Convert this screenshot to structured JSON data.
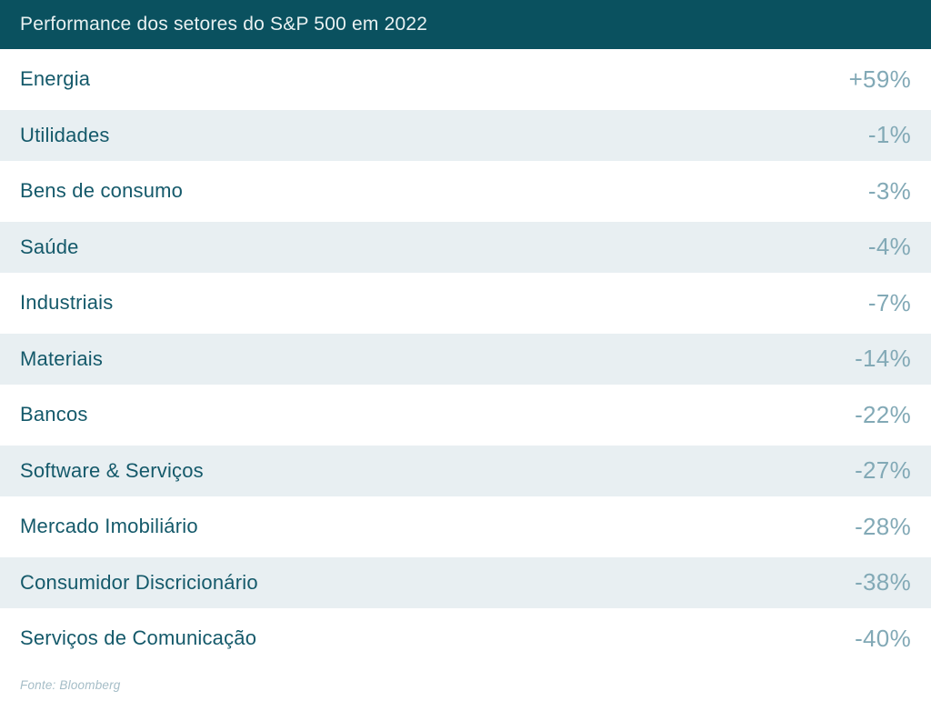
{
  "header": {
    "title": "Performance dos setores do S&P 500 em 2022"
  },
  "rows": [
    {
      "label": "Energia",
      "value": "+59%"
    },
    {
      "label": "Utilidades",
      "value": "-1%"
    },
    {
      "label": "Bens de consumo",
      "value": "-3%"
    },
    {
      "label": "Saúde",
      "value": "-4%"
    },
    {
      "label": "Industriais",
      "value": "-7%"
    },
    {
      "label": "Materiais",
      "value": "-14%"
    },
    {
      "label": "Bancos",
      "value": "-22%"
    },
    {
      "label": "Software & Serviços",
      "value": "-27%"
    },
    {
      "label": "Mercado Imobiliário",
      "value": "-28%"
    },
    {
      "label": "Consumidor Discricionário",
      "value": "-38%"
    },
    {
      "label": "Serviços de Comunicação",
      "value": "-40%"
    }
  ],
  "footer": {
    "source": "Fonte: Bloomberg"
  },
  "colors": {
    "header_bg": "#0a515f",
    "header_text": "#e9f1f2",
    "label_text": "#14596a",
    "value_text": "#82a9b6",
    "row_alt_bg": "#e8eff2",
    "source_text": "#a5bdc7"
  },
  "chart_data": {
    "type": "table",
    "title": "Performance dos setores do S&P 500 em 2022",
    "categories": [
      "Energia",
      "Utilidades",
      "Bens de consumo",
      "Saúde",
      "Industriais",
      "Materiais",
      "Bancos",
      "Software & Serviços",
      "Mercado Imobiliário",
      "Consumidor Discricionário",
      "Serviços de Comunicação"
    ],
    "values": [
      59,
      -1,
      -3,
      -4,
      -7,
      -14,
      -22,
      -27,
      -28,
      -38,
      -40
    ],
    "value_unit": "percent",
    "source": "Fonte: Bloomberg",
    "layout": {
      "row_striping": true,
      "values_right_aligned": true
    }
  }
}
